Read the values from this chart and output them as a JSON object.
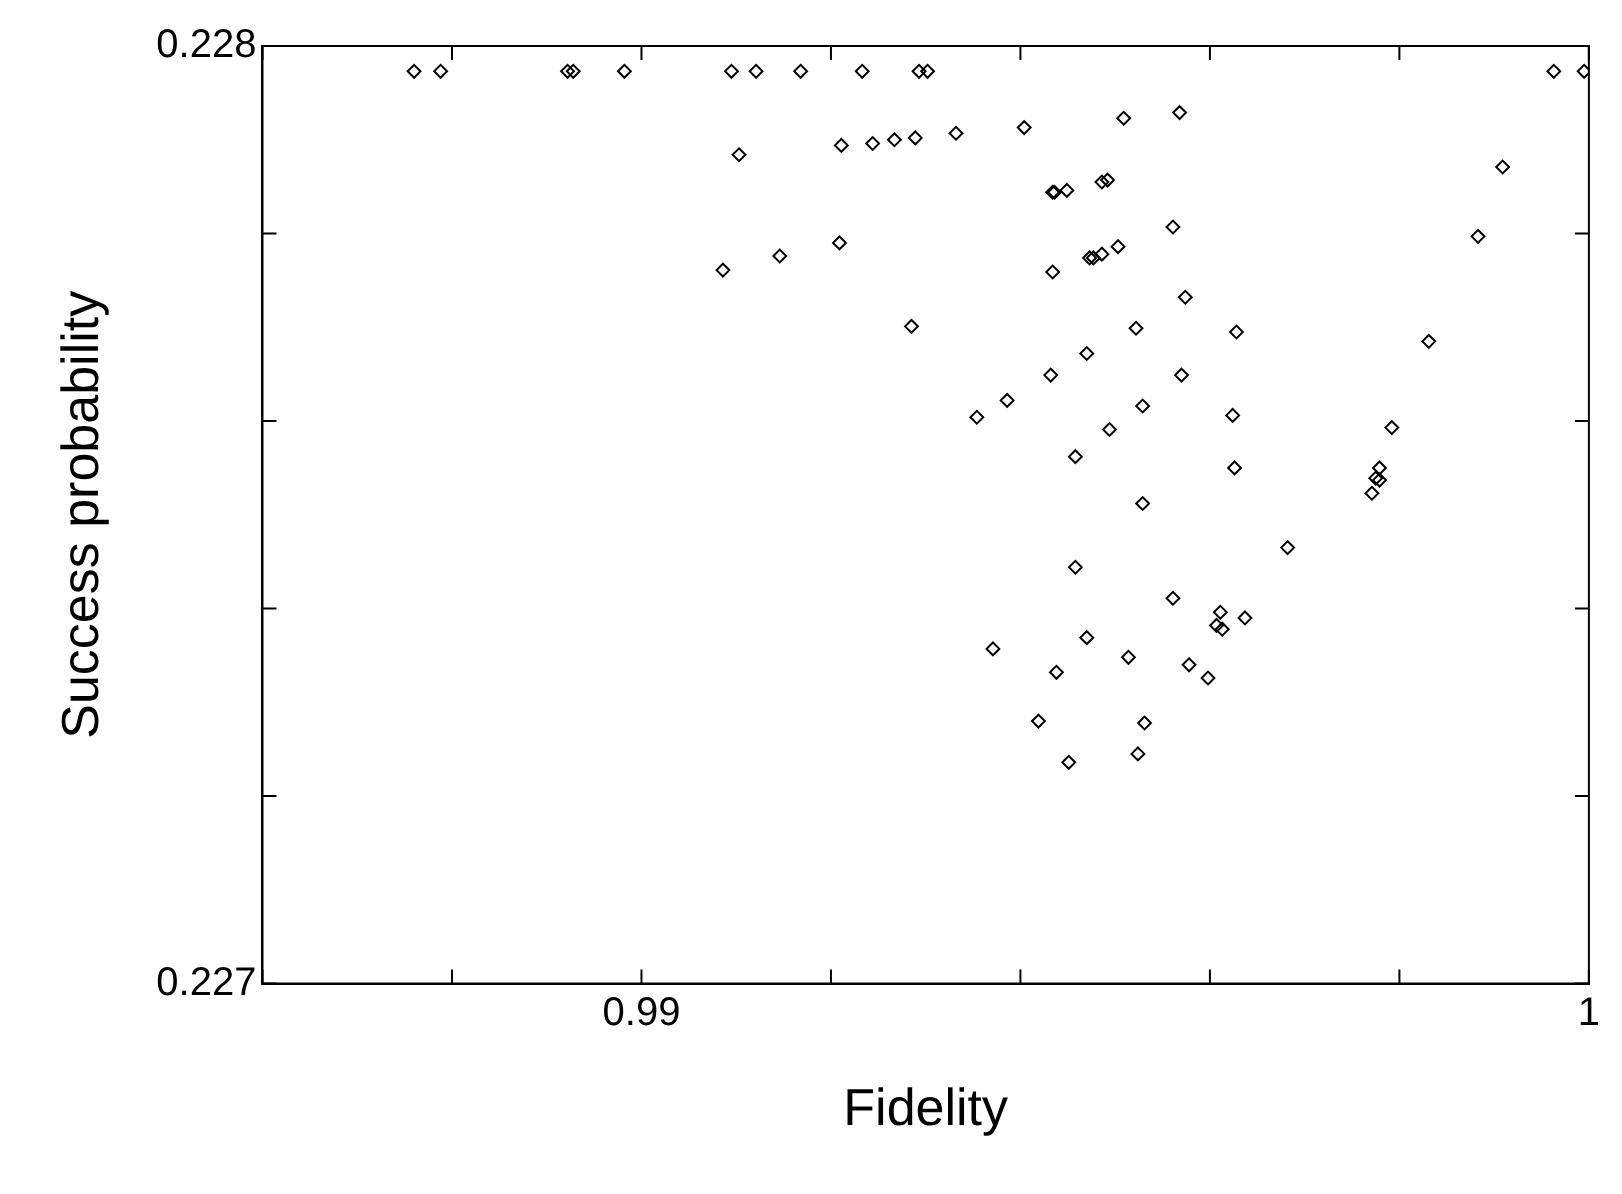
{
  "chart_data": {
    "type": "scatter",
    "xlabel": "Fidelity",
    "ylabel": "Success probability",
    "marker": "diamond",
    "grid": false,
    "legend": false,
    "xlim": [
      0.986,
      1.0
    ],
    "ylim": [
      0.227,
      0.228
    ],
    "xticks": [
      {
        "value": 0.986,
        "label": null
      },
      {
        "value": 0.988,
        "label": null
      },
      0.99,
      {
        "value": 0.992,
        "label": null
      },
      {
        "value": 0.994,
        "label": null
      },
      {
        "value": 0.996,
        "label": null
      },
      {
        "value": 0.998,
        "label": null
      },
      1
    ],
    "yticks": [
      0.227,
      {
        "value": 0.2272,
        "label": null
      },
      {
        "value": 0.2274,
        "label": null
      },
      {
        "value": 0.2276,
        "label": null
      },
      {
        "value": 0.2278,
        "label": null
      },
      0.228
    ],
    "series": [
      {
        "color": "#000000",
        "x": [
          0.9876,
          0.98788,
          0.98922,
          0.98928,
          0.98982,
          0.99095,
          0.99121,
          0.99168,
          0.99233,
          0.99293,
          0.99302,
          0.99963,
          0.99995,
          0.99103,
          0.99211,
          0.99244,
          0.99267,
          0.99289,
          0.99209,
          0.99146,
          0.99086,
          0.99285,
          0.99332,
          0.99404,
          0.99509,
          0.99568,
          0.99436,
          0.99434,
          0.99449,
          0.99486,
          0.99492,
          0.99561,
          0.99503,
          0.99477,
          0.99473,
          0.99486,
          0.99434,
          0.99574,
          0.99522,
          0.9947,
          0.99628,
          0.99831,
          0.99883,
          0.99909,
          0.99432,
          0.9957,
          0.99386,
          0.99354,
          0.99529,
          0.99494,
          0.99624,
          0.99792,
          0.99458,
          0.99626,
          0.99779,
          0.99775,
          0.99779,
          0.99771,
          0.99529,
          0.99682,
          0.99458,
          0.99561,
          0.99611,
          0.99607,
          0.99613,
          0.99637,
          0.99371,
          0.9947,
          0.99514,
          0.99438,
          0.99578,
          0.99598,
          0.99419,
          0.99531,
          0.99451,
          0.99524
        ],
        "values": [
          0.227973,
          0.227973,
          0.227973,
          0.227973,
          0.227973,
          0.227973,
          0.227973,
          0.227973,
          0.227973,
          0.227973,
          0.227973,
          0.227973,
          0.227973,
          0.227884,
          0.227894,
          0.227896,
          0.2279,
          0.227902,
          0.22779,
          0.227776,
          0.227761,
          0.227701,
          0.227907,
          0.227913,
          0.227923,
          0.227929,
          0.227844,
          0.227844,
          0.227846,
          0.227855,
          0.227857,
          0.227807,
          0.227786,
          0.227774,
          0.227774,
          0.227778,
          0.227759,
          0.227732,
          0.227699,
          0.227672,
          0.227695,
          0.227685,
          0.227797,
          0.227871,
          0.227649,
          0.227649,
          0.227622,
          0.227604,
          0.227616,
          0.227591,
          0.227606,
          0.227593,
          0.227562,
          0.22755,
          0.22755,
          0.227539,
          0.227537,
          0.227523,
          0.227512,
          0.227465,
          0.227444,
          0.227411,
          0.227396,
          0.227382,
          0.227378,
          0.22739,
          0.227357,
          0.227369,
          0.227348,
          0.227332,
          0.22734,
          0.227326,
          0.22728,
          0.227278,
          0.227236,
          0.227245
        ]
      }
    ]
  }
}
